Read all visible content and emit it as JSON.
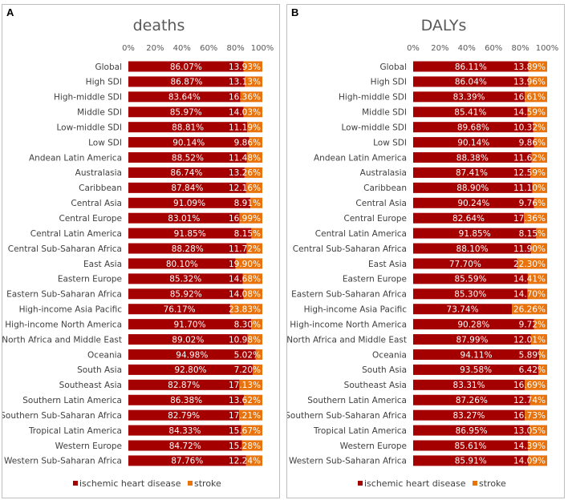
{
  "chart_data": [
    {
      "panel_label": "A",
      "type": "bar",
      "orientation": "horizontal",
      "stacked": true,
      "percent": true,
      "title": "deaths",
      "xlim": [
        0,
        100
      ],
      "x_ticks": [
        "0%",
        "20%",
        "40%",
        "60%",
        "80%",
        "100%"
      ],
      "categories": [
        "Global",
        "High SDI",
        "High-middle SDI",
        "Middle SDI",
        "Low-middle SDI",
        "Low SDI",
        "Andean Latin America",
        "Australasia",
        "Caribbean",
        "Central Asia",
        "Central Europe",
        "Central Latin America",
        "Central Sub-Saharan Africa",
        "East Asia",
        "Eastern Europe",
        "Eastern Sub-Saharan Africa",
        "High-income Asia Pacific",
        "High-income North America",
        "North Africa and Middle East",
        "Oceania",
        "South Asia",
        "Southeast Asia",
        "Southern Latin America",
        "Southern Sub-Saharan Africa",
        "Tropical Latin America",
        "Western Europe",
        "Western Sub-Saharan Africa"
      ],
      "series": [
        {
          "name": "ischemic heart disease",
          "color": "#a50000",
          "values": [
            86.07,
            86.87,
            83.64,
            85.97,
            88.81,
            90.14,
            88.52,
            86.74,
            87.84,
            91.09,
            83.01,
            91.85,
            88.28,
            80.1,
            85.32,
            85.92,
            76.17,
            91.7,
            89.02,
            94.98,
            92.8,
            82.87,
            86.38,
            82.79,
            84.33,
            84.72,
            87.76
          ],
          "labels": [
            "86.07%",
            "86.87%",
            "83.64%",
            "85.97%",
            "88.81%",
            "90.14%",
            "88.52%",
            "86.74%",
            "87.84%",
            "91.09%",
            "83.01%",
            "91.85%",
            "88.28%",
            "80.10%",
            "85.32%",
            "85.92%",
            "76.17%",
            "91.70%",
            "89.02%",
            "94.98%",
            "92.80%",
            "82.87%",
            "86.38%",
            "82.79%",
            "84.33%",
            "84.72%",
            "87.76%"
          ]
        },
        {
          "name": "stroke",
          "color": "#e8730c",
          "values": [
            13.93,
            13.13,
            16.36,
            14.03,
            11.19,
            9.86,
            11.48,
            13.26,
            12.16,
            8.91,
            16.99,
            8.15,
            11.72,
            19.9,
            14.68,
            14.08,
            23.83,
            8.3,
            10.98,
            5.02,
            7.2,
            17.13,
            13.62,
            17.21,
            15.67,
            15.28,
            12.24
          ],
          "labels": [
            "13.93%",
            "13.13%",
            "16.36%",
            "14.03%",
            "11.19%",
            "9.86%",
            "11.48%",
            "13.26%",
            "12.16%",
            "8.91%",
            "16.99%",
            "8.15%",
            "11.72%",
            "19.90%",
            "14.68%",
            "14.08%",
            "23.83%",
            "8.30%",
            "10.98%",
            "5.02%",
            "7.20%",
            "17.13%",
            "13.62%",
            "17.21%",
            "15.67%",
            "15.28%",
            "12.24%"
          ]
        }
      ],
      "legend": [
        "ischemic heart disease",
        "stroke"
      ],
      "legend_position": "bottom"
    },
    {
      "panel_label": "B",
      "type": "bar",
      "orientation": "horizontal",
      "stacked": true,
      "percent": true,
      "title": "DALYs",
      "xlim": [
        0,
        100
      ],
      "x_ticks": [
        "0%",
        "20%",
        "40%",
        "60%",
        "80%",
        "100%"
      ],
      "categories": [
        "Global",
        "High SDI",
        "High-middle SDI",
        "Middle SDI",
        "Low-middle SDI",
        "Low SDI",
        "Andean Latin America",
        "Australasia",
        "Caribbean",
        "Central Asia",
        "Central Europe",
        "Central Latin America",
        "Central Sub-Saharan Africa",
        "East Asia",
        "Eastern Europe",
        "Eastern Sub-Saharan Africa",
        "High-income Asia Pacific",
        "High-income North America",
        "North Africa and Middle East",
        "Oceania",
        "South Asia",
        "Southeast Asia",
        "Southern Latin America",
        "Southern Sub-Saharan Africa",
        "Tropical Latin America",
        "Western Europe",
        "Western Sub-Saharan Africa"
      ],
      "series": [
        {
          "name": "ischemic heart disease",
          "color": "#a50000",
          "values": [
            86.11,
            86.04,
            83.39,
            85.41,
            89.68,
            90.14,
            88.38,
            87.41,
            88.9,
            90.24,
            82.64,
            91.85,
            88.1,
            77.7,
            85.59,
            85.3,
            73.74,
            90.28,
            87.99,
            94.11,
            93.58,
            83.31,
            87.26,
            83.27,
            86.95,
            85.61,
            85.91
          ],
          "labels": [
            "86.11%",
            "86.04%",
            "83.39%",
            "85.41%",
            "89.68%",
            "90.14%",
            "88.38%",
            "87.41%",
            "88.90%",
            "90.24%",
            "82.64%",
            "91.85%",
            "88.10%",
            "77.70%",
            "85.59%",
            "85.30%",
            "73.74%",
            "90.28%",
            "87.99%",
            "94.11%",
            "93.58%",
            "83.31%",
            "87.26%",
            "83.27%",
            "86.95%",
            "85.61%",
            "85.91%"
          ]
        },
        {
          "name": "stroke",
          "color": "#e8730c",
          "values": [
            13.89,
            13.96,
            16.61,
            14.59,
            10.32,
            9.86,
            11.62,
            12.59,
            11.1,
            9.76,
            17.36,
            8.15,
            11.9,
            22.3,
            14.41,
            14.7,
            26.26,
            9.72,
            12.01,
            5.89,
            6.42,
            16.69,
            12.74,
            16.73,
            13.05,
            14.39,
            14.09
          ],
          "labels": [
            "13.89%",
            "13.96%",
            "16.61%",
            "14.59%",
            "10.32%",
            "9.86%",
            "11.62%",
            "12.59%",
            "11.10%",
            "9.76%",
            "17.36%",
            "8.15%",
            "11.90%",
            "22.30%",
            "14.41%",
            "14.70%",
            "26.26%",
            "9.72%",
            "12.01%",
            "5.89%",
            "6.42%",
            "16.69%",
            "12.74%",
            "16.73%",
            "13.05%",
            "14.39%",
            "14.09%"
          ]
        }
      ],
      "legend": [
        "ischemic heart disease",
        "stroke"
      ],
      "legend_position": "bottom"
    }
  ]
}
